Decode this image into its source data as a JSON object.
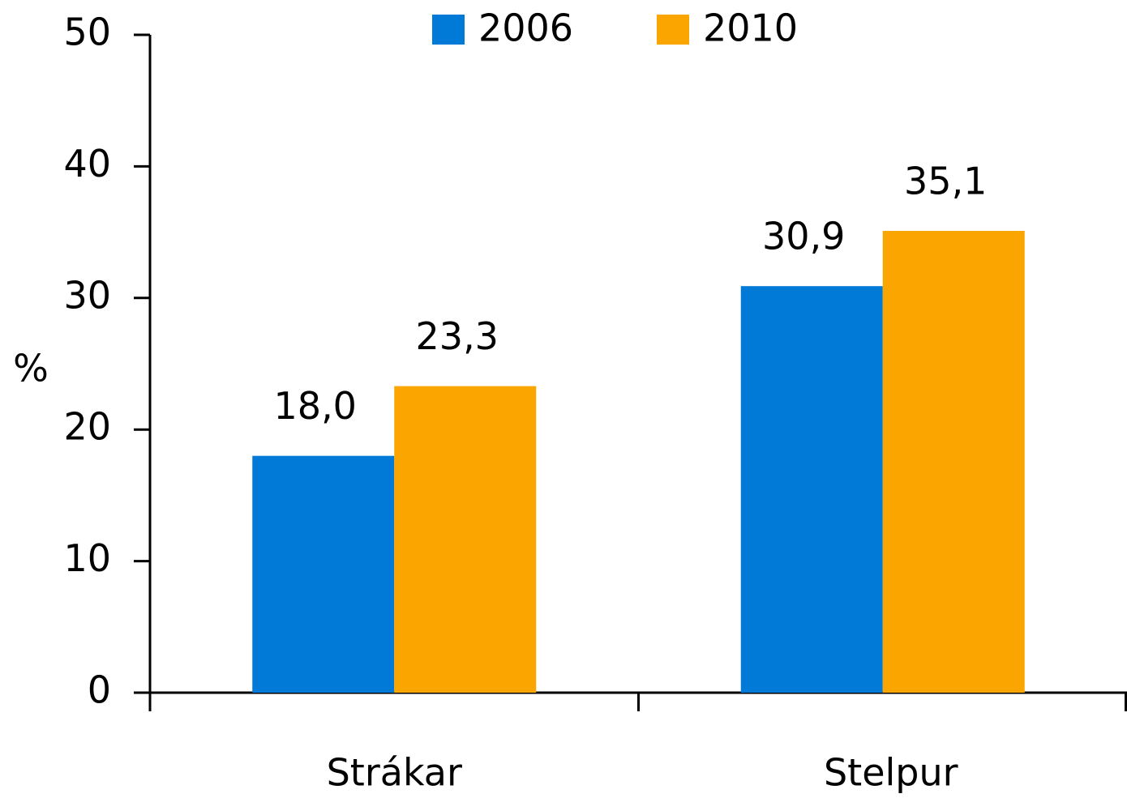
{
  "chart_data": {
    "type": "bar",
    "y_label": "%",
    "categories": [
      "Strákar",
      "Stelpur"
    ],
    "series": [
      {
        "name": "2006",
        "color": "#0179d6",
        "values": [
          18.0,
          30.9
        ],
        "value_labels": [
          "18,0",
          "30,9"
        ]
      },
      {
        "name": "2010",
        "color": "#fba600",
        "values": [
          23.3,
          35.1
        ],
        "value_labels": [
          "23,3",
          "35,1"
        ]
      }
    ],
    "ylim": [
      0,
      50
    ],
    "yticks": [
      0,
      10,
      20,
      30,
      40,
      50
    ],
    "grid": false,
    "legend": "top"
  }
}
